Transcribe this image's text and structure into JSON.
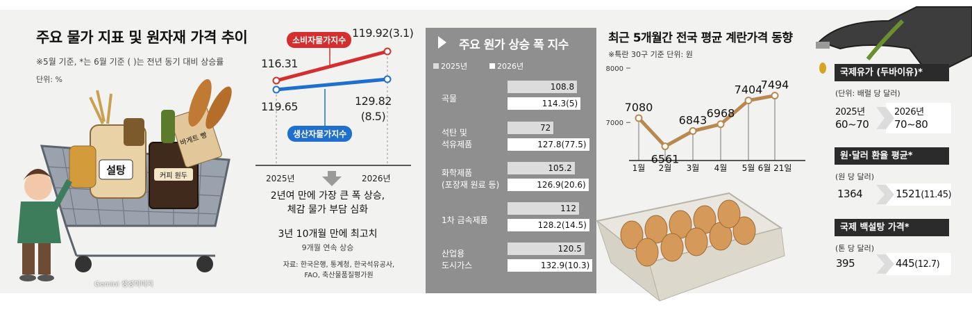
{
  "panel1": {
    "title": "주요 물가 지표 및 원자재 가격 추이",
    "note": "※5월 기준, *는 6월 기준 ( )는 전년 동기 대비 상승률",
    "unit": "단위: %",
    "illustration_text": {
      "sugar_label": "설탕",
      "coffee_label": "커피 원두",
      "baguette_label": "바게트 빵",
      "credit": "Gemini 생성이미지"
    },
    "cpi_label": "소비자물가지수",
    "ppi_label": "생산자물가지수",
    "cpi_2025": "116.31",
    "cpi_2026": "119.92(3.1)",
    "ppi_2025": "119.65",
    "ppi_2026_value": "129.82",
    "ppi_2026_rate": "(8.5)",
    "year_a": "2025년",
    "year_b": "2026년",
    "summary_line1": "2년여 만에 가장 큰 폭 상승,",
    "summary_line2": "체감 물가 부담 심화",
    "summary2": "3년 10개월 만에 최고치",
    "summary3": "9개월 연속 상승",
    "source_line1": "자료: 한국은행, 통계청, 한국석유공사,",
    "source_line2": "FAO, 축산물품질평가원"
  },
  "panel2": {
    "title": "주요 원가 상승 폭 지수",
    "legend_a": "2025년",
    "legend_b": "2026년",
    "categories": [
      {
        "label_1": "곡물",
        "label_2": "",
        "v2025": "108.8",
        "v2026": "114.3(5)"
      },
      {
        "label_1": "석탄 및",
        "label_2": "석유제품",
        "v2025": "72",
        "v2026": "127.8(77.5)"
      },
      {
        "label_1": "화학제품",
        "label_2": "(포장재 원료 등)",
        "v2025": "105.2",
        "v2026": "126.9(20.6)"
      },
      {
        "label_1": "1차 금속제품",
        "label_2": "",
        "v2025": "112",
        "v2026": "128.2(14.5)"
      },
      {
        "label_1": "산업용",
        "label_2": "도시가스",
        "v2025": "120.5",
        "v2026": "132.9(10.3)"
      }
    ]
  },
  "panel3": {
    "title": "최근 5개월간 전국 평균 계란가격 동향",
    "note": "※특란 30구 기준    단위: 원",
    "tick_8000": "8000",
    "tick_7000": "7000",
    "labels": [
      "7080",
      "6561",
      "6843",
      "6968",
      "7404",
      "7494"
    ]
  },
  "panel4": {
    "oil_title": "국제유가 (두바이유)*",
    "oil_unit": "(단위: 배럴 당 달러)",
    "oil_year_a": "2025년",
    "oil_year_b": "2026년",
    "oil_a": "60~70",
    "oil_b": "70~80",
    "fx_title": "원·달러 환율 평균*",
    "fx_unit": "(원 당 달러)",
    "fx_a": "1364",
    "fx_b_value": "1521",
    "fx_b_rate": "(11.45)",
    "sugar_title": "국제 백설탕 가격*",
    "sugar_unit": "(톤 당 달러)",
    "sugar_a": "395",
    "sugar_b_value": "445",
    "sugar_b_rate": "(12.7)"
  },
  "colors": {
    "cpi": "#d42e2e",
    "ppi": "#1f6fcf",
    "egg_line": "#b8894f",
    "panel_gray": "#8f8f8f",
    "box_dark": "#2b2b2b"
  },
  "chart_data": [
    {
      "type": "line",
      "categories": [
        "2025년",
        "2026년"
      ],
      "series": [
        {
          "name": "소비자물가지수",
          "values": [
            116.31,
            119.92
          ]
        },
        {
          "name": "생산자물가지수",
          "values": [
            119.65,
            129.82
          ]
        }
      ],
      "annotations": [
        "119.92(3.1)",
        "129.82(8.5)"
      ]
    },
    {
      "type": "bar",
      "title": "주요 원가 상승 폭 지수",
      "categories": [
        "곡물",
        "석탄 및 석유제품",
        "화학제품 (포장재 원료 등)",
        "1차 금속제품",
        "산업용 도시가스"
      ],
      "series": [
        {
          "name": "2025년",
          "values": [
            108.8,
            72,
            105.2,
            112,
            120.5
          ]
        },
        {
          "name": "2026년",
          "values": [
            114.3,
            127.8,
            126.9,
            128.2,
            132.9
          ]
        }
      ],
      "change_pct": [
        5,
        77.5,
        20.6,
        14.5,
        10.3
      ]
    },
    {
      "type": "line",
      "title": "최근 5개월간 전국 평균 계란가격 동향",
      "categories": [
        "1월",
        "2월",
        "3월",
        "4월",
        "5월",
        "6월 21일"
      ],
      "values": [
        7080,
        6561,
        6843,
        6968,
        7404,
        7494
      ],
      "ylim": [
        6300,
        8000
      ],
      "yticks": [
        7000,
        8000
      ],
      "ylabel": "원"
    }
  ]
}
